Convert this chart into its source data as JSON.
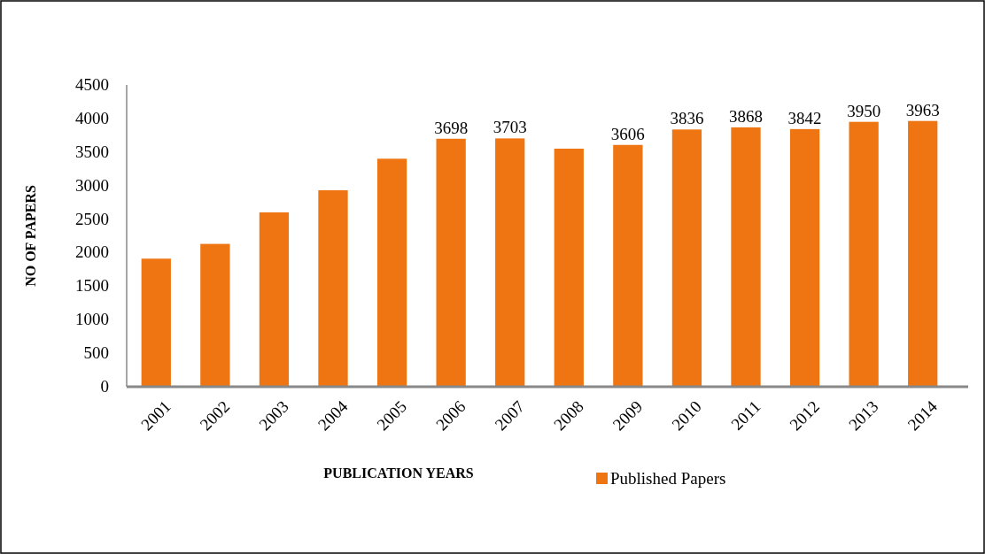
{
  "chart_data": {
    "type": "bar",
    "xlabel": "PUBLICATION YEARS",
    "ylabel": "NO OF PAPERS",
    "categories": [
      "2001",
      "2002",
      "2003",
      "2004",
      "2005",
      "2006",
      "2007",
      "2008",
      "2009",
      "2010",
      "2011",
      "2012",
      "2013",
      "2014"
    ],
    "series": [
      {
        "name": "Published Papers",
        "color": "#ee7512",
        "values": [
          1910,
          2130,
          2600,
          2930,
          3400,
          3698,
          3703,
          3550,
          3606,
          3836,
          3868,
          3842,
          3950,
          3963
        ],
        "value_labels": [
          null,
          null,
          null,
          null,
          null,
          "3698",
          "3703",
          null,
          "3606",
          "3836",
          "3868",
          "3842",
          "3950",
          "3963"
        ]
      }
    ],
    "ylim": [
      0,
      4500
    ],
    "yticks": [
      0,
      500,
      1000,
      1500,
      2000,
      2500,
      3000,
      3500,
      4000,
      4500
    ],
    "grid": false,
    "legend": "bottom right"
  }
}
